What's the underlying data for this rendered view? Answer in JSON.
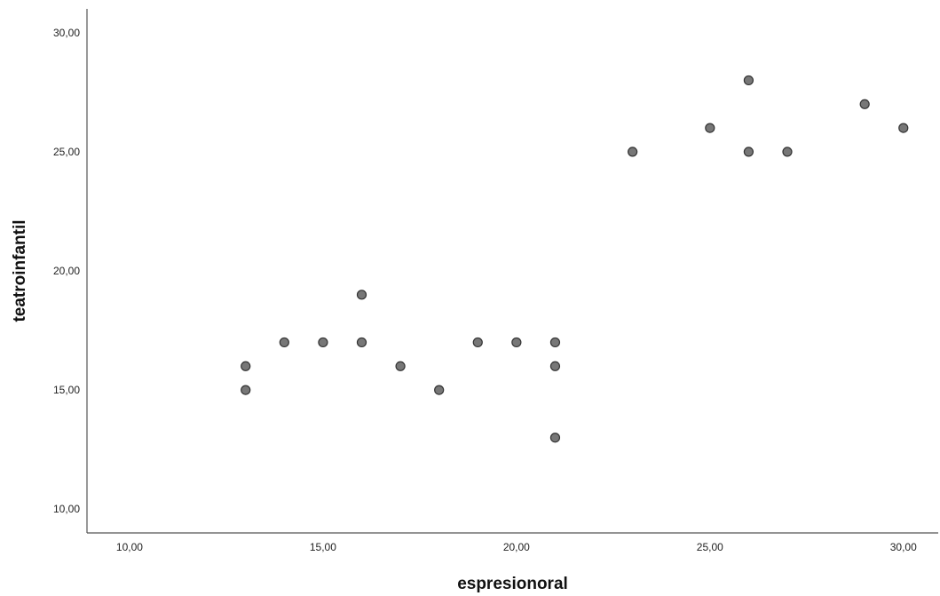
{
  "colors": {
    "marker_fill": "#777777",
    "marker_stroke": "#333333",
    "axis": "#555555"
  },
  "chart_data": {
    "type": "scatter",
    "title": "",
    "xlabel": "espresionoral",
    "ylabel": "teatroinfantil",
    "xlim": [
      8.9,
      30.9
    ],
    "ylim": [
      9.0,
      31.0
    ],
    "xticks": [
      10,
      15,
      20,
      25,
      30
    ],
    "yticks": [
      10,
      15,
      20,
      25,
      30
    ],
    "xtick_labels": [
      "10,00",
      "15,00",
      "20,00",
      "25,00",
      "30,00"
    ],
    "ytick_labels": [
      "10,00",
      "15,00",
      "20,00",
      "25,00",
      "30,00"
    ],
    "grid": false,
    "points": [
      {
        "x": 13,
        "y": 16
      },
      {
        "x": 13,
        "y": 15
      },
      {
        "x": 14,
        "y": 17
      },
      {
        "x": 15,
        "y": 17
      },
      {
        "x": 16,
        "y": 19
      },
      {
        "x": 16,
        "y": 17
      },
      {
        "x": 17,
        "y": 16
      },
      {
        "x": 18,
        "y": 15
      },
      {
        "x": 19,
        "y": 17
      },
      {
        "x": 20,
        "y": 17
      },
      {
        "x": 21,
        "y": 17
      },
      {
        "x": 21,
        "y": 16
      },
      {
        "x": 21,
        "y": 13
      },
      {
        "x": 23,
        "y": 25
      },
      {
        "x": 25,
        "y": 26
      },
      {
        "x": 26,
        "y": 28
      },
      {
        "x": 26,
        "y": 25
      },
      {
        "x": 27,
        "y": 25
      },
      {
        "x": 29,
        "y": 27
      },
      {
        "x": 30,
        "y": 26
      }
    ]
  }
}
